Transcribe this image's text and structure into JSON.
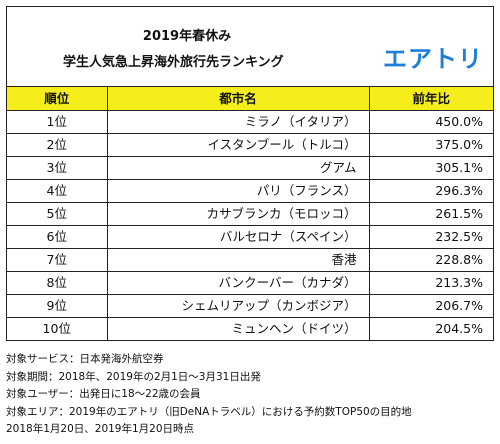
{
  "header": {
    "title_line1": "2019年春休み",
    "title_line2": "学生人気急上昇海外旅行先ランキング",
    "logo_text": "エアトリ",
    "logo_color": "#1d7fd6"
  },
  "table": {
    "header_color": "#f5ee1b",
    "columns": [
      "順位",
      "都市名",
      "前年比"
    ],
    "rows": [
      {
        "rank": "1位",
        "city": "ミラノ（イタリア）",
        "ratio": "450.0%"
      },
      {
        "rank": "2位",
        "city": "イスタンブール（トルコ）",
        "ratio": "375.0%"
      },
      {
        "rank": "3位",
        "city": "グアム",
        "ratio": "305.1%"
      },
      {
        "rank": "4位",
        "city": "パリ（フランス）",
        "ratio": "296.3%"
      },
      {
        "rank": "5位",
        "city": "カサブランカ（モロッコ）",
        "ratio": "261.5%"
      },
      {
        "rank": "6位",
        "city": "バルセロナ（スペイン）",
        "ratio": "232.5%"
      },
      {
        "rank": "7位",
        "city": "香港",
        "ratio": "228.8%"
      },
      {
        "rank": "8位",
        "city": "バンクーバー（カナダ）",
        "ratio": "213.3%"
      },
      {
        "rank": "9位",
        "city": "シェムリアップ（カンボジア）",
        "ratio": "206.7%"
      },
      {
        "rank": "10位",
        "city": "ミュンヘン（ドイツ）",
        "ratio": "204.5%"
      }
    ]
  },
  "notes": [
    "対象サービス：日本発海外航空券",
    "対象期間：2018年、2019年の2月1日～3月31日出発",
    "対象ユーザー：出発日に18～22歳の会員",
    "対象エリア：2019年のエアトリ（旧DeNAトラベル）における予約数TOP50の目的地",
    "2018年1月20日、2019年1月20日時点"
  ]
}
